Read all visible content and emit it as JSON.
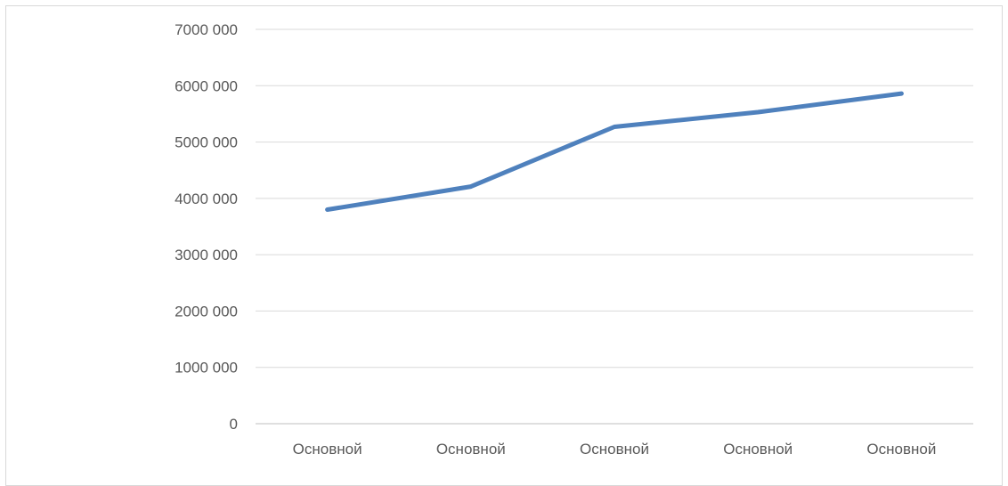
{
  "chart_data": {
    "type": "line",
    "title": "",
    "xlabel": "",
    "ylabel": "",
    "categories": [
      "Основной",
      "Основной",
      "Основной",
      "Основной",
      "Основной"
    ],
    "series": [
      {
        "values": [
          3800000,
          4210000,
          5270000,
          5530000,
          5860000
        ],
        "color": "#4f81bd"
      }
    ],
    "ylim": [
      0,
      7000000
    ],
    "yticks": [
      0,
      1000000,
      2000000,
      3000000,
      4000000,
      5000000,
      6000000,
      7000000
    ],
    "ytick_labels": [
      "0",
      "1000 000",
      "2000 000",
      "3000 000",
      "4000 000",
      "5000 000",
      "6000 000",
      "7000 000"
    ],
    "grid": true,
    "gridline_color": "#d9d9d9",
    "axis_color": "#bfbfbf",
    "legend": "none"
  }
}
